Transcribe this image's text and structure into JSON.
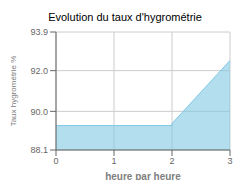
{
  "chart_data": {
    "type": "area",
    "title": "Evolution du taux d'hygrométrie",
    "xlabel": "heure par heure",
    "ylabel": "Taux hygrométrie %",
    "x": [
      0,
      2,
      2,
      3
    ],
    "values": [
      89.3,
      89.3,
      89.4,
      92.5
    ],
    "xlim": [
      0,
      3
    ],
    "ylim": [
      88.1,
      93.9
    ],
    "xticks": [
      0,
      1,
      2,
      3
    ],
    "yticks": [
      88.1,
      {
        "value": 90.0,
        "label": "90.0"
      },
      {
        "value": 92.0,
        "label": "92.0"
      },
      93.9
    ],
    "color": "#7ec8e3",
    "grid": true
  }
}
